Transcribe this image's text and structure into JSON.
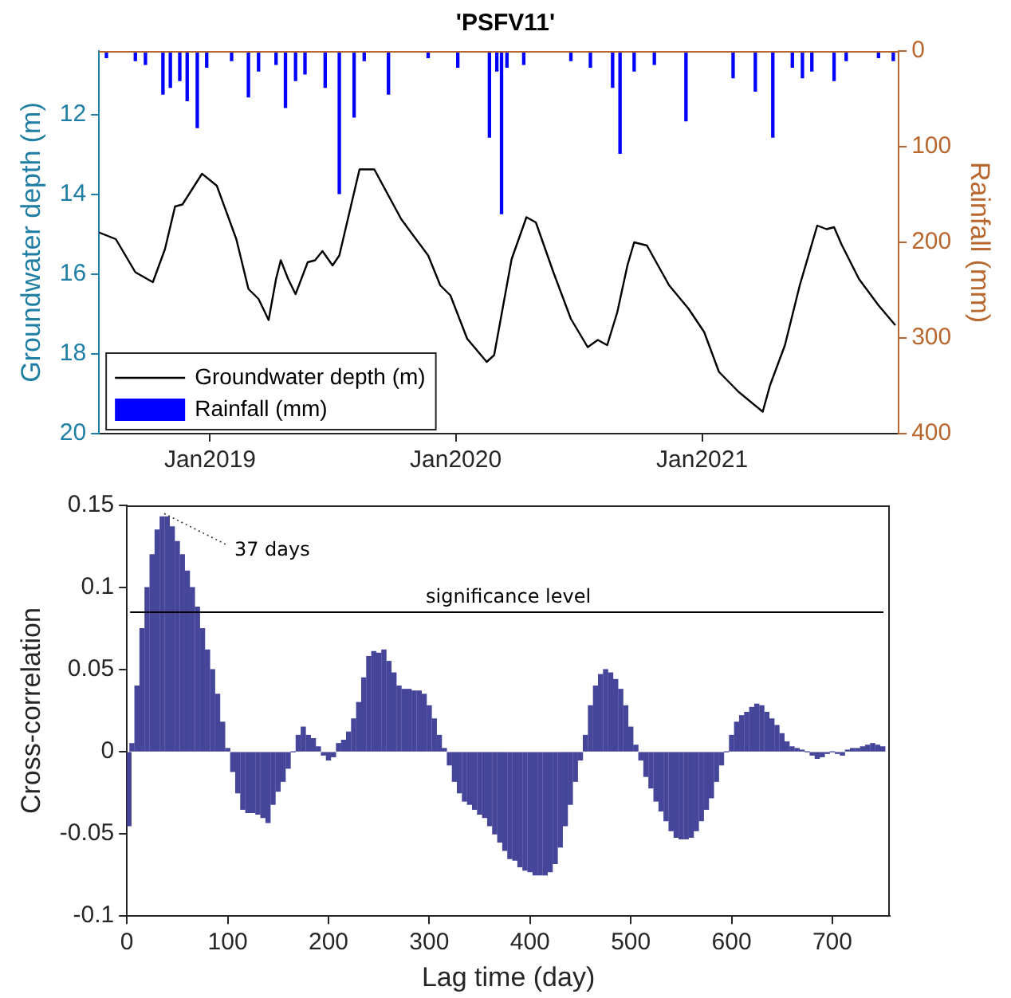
{
  "chart_data": [
    {
      "type": "line",
      "title": "'PSFV11'",
      "ylabel": "Groundwater depth (m)",
      "y2label": "Rainfall (mm)",
      "xlim": [
        "2018-07-20",
        "2021-10-20"
      ],
      "xticks": [
        {
          "value": "2019-01-01",
          "label": "Jan2019"
        },
        {
          "value": "2020-01-01",
          "label": "Jan2020"
        },
        {
          "value": "2021-01-01",
          "label": "Jan2021"
        }
      ],
      "ylim": [
        20,
        10.4
      ],
      "yticks": [
        12,
        14,
        16,
        18,
        20
      ],
      "y2lim": [
        400,
        0
      ],
      "y2ticks": [
        0,
        100,
        200,
        300,
        400
      ],
      "legend": "bottom left",
      "series": [
        {
          "name": "Groundwater depth (m)",
          "color": "#000000",
          "x": [
            "2018-07-20",
            "2018-08-14",
            "2018-09-12",
            "2018-10-08",
            "2018-10-26",
            "2018-11-10",
            "2018-11-21",
            "2018-12-20",
            "2019-01-11",
            "2019-02-09",
            "2019-02-27",
            "2019-03-14",
            "2019-03-29",
            "2019-04-09",
            "2019-04-16",
            "2019-04-27",
            "2019-05-08",
            "2019-05-26",
            "2019-06-06",
            "2019-06-17",
            "2019-07-02",
            "2019-07-12",
            "2019-07-27",
            "2019-08-11",
            "2019-09-02",
            "2019-10-12",
            "2019-11-21",
            "2019-12-09",
            "2019-12-24",
            "2020-01-18",
            "2020-02-16",
            "2020-02-27",
            "2020-03-24",
            "2020-04-15",
            "2020-04-29",
            "2020-05-25",
            "2020-06-20",
            "2020-07-15",
            "2020-07-30",
            "2020-08-13",
            "2020-08-28",
            "2020-09-12",
            "2020-09-22",
            "2020-10-11",
            "2020-11-13",
            "2020-12-12",
            "2021-01-04",
            "2021-01-26",
            "2021-02-24",
            "2021-04-01",
            "2021-04-12",
            "2021-05-04",
            "2021-05-26",
            "2021-06-21",
            "2021-07-05",
            "2021-07-16",
            "2021-07-27",
            "2021-08-22",
            "2021-09-20",
            "2021-10-15"
          ],
          "values": [
            14.95,
            15.12,
            15.95,
            16.2,
            15.37,
            14.3,
            14.25,
            13.48,
            13.78,
            15.12,
            16.37,
            16.62,
            17.15,
            16.12,
            15.65,
            16.12,
            16.5,
            15.7,
            15.65,
            15.42,
            15.78,
            15.53,
            14.45,
            13.37,
            13.37,
            14.62,
            15.53,
            16.28,
            16.53,
            17.62,
            18.2,
            18.03,
            15.62,
            14.57,
            14.7,
            15.95,
            17.12,
            17.83,
            17.65,
            17.78,
            16.95,
            15.78,
            15.2,
            15.28,
            16.28,
            16.87,
            17.45,
            18.45,
            18.95,
            19.45,
            18.78,
            17.78,
            16.28,
            14.78,
            14.87,
            14.82,
            15.25,
            16.12,
            16.78,
            17.28
          ]
        },
        {
          "name": "Rainfall (mm)",
          "type": "bar",
          "axis": "y2",
          "color": "#0000ff",
          "x": [
            "2018-07-31",
            "2018-09-12",
            "2018-09-27",
            "2018-10-23",
            "2018-11-03",
            "2018-11-17",
            "2018-11-28",
            "2018-12-13",
            "2018-12-27",
            "2019-02-02",
            "2019-02-27",
            "2019-03-14",
            "2019-04-09",
            "2019-04-23",
            "2019-05-08",
            "2019-05-22",
            "2019-06-21",
            "2019-07-12",
            "2019-08-03",
            "2019-08-18",
            "2019-09-23",
            "2019-11-21",
            "2020-01-04",
            "2020-02-20",
            "2020-03-02",
            "2020-03-09",
            "2020-03-17",
            "2020-04-11",
            "2020-06-20",
            "2020-07-19",
            "2020-08-21",
            "2020-09-01",
            "2020-09-22",
            "2020-10-22",
            "2020-12-08",
            "2021-02-16",
            "2021-03-21",
            "2021-04-16",
            "2021-05-15",
            "2021-05-30",
            "2021-06-13",
            "2021-07-16",
            "2021-08-03",
            "2021-09-20",
            "2021-10-12"
          ],
          "values": [
            7,
            10,
            14,
            45,
            38,
            31,
            52,
            80,
            17,
            10,
            48,
            21,
            14,
            59,
            31,
            24,
            38,
            149,
            69,
            10,
            45,
            7,
            17,
            90,
            21,
            170,
            17,
            14,
            10,
            17,
            38,
            107,
            21,
            14,
            73,
            28,
            42,
            90,
            17,
            28,
            21,
            31,
            10,
            7,
            10
          ]
        }
      ]
    },
    {
      "type": "bar",
      "xlabel": "Lag time (day)",
      "ylabel": "Cross-correlation",
      "color": "#45459a",
      "xlim": [
        0,
        757
      ],
      "xticks": [
        0,
        100,
        200,
        300,
        400,
        500,
        600,
        700
      ],
      "ylim": [
        -0.1,
        0.15
      ],
      "yticks": [
        -0.1,
        -0.05,
        0,
        0.05,
        0.1,
        0.15
      ],
      "ref_lines": [
        {
          "axis": "y",
          "value": 0.085,
          "label": "significance level",
          "color": "#000000"
        }
      ],
      "annotations": [
        {
          "text": "37 days",
          "x": 37,
          "y": 0.145
        }
      ],
      "x": [
        2,
        5,
        10,
        15,
        20,
        25,
        30,
        35,
        40,
        45,
        50,
        55,
        60,
        65,
        70,
        75,
        80,
        85,
        90,
        95,
        100,
        105,
        110,
        115,
        120,
        125,
        130,
        135,
        140,
        145,
        150,
        155,
        160,
        165,
        170,
        175,
        180,
        185,
        190,
        195,
        200,
        205,
        210,
        215,
        220,
        225,
        230,
        235,
        240,
        245,
        250,
        255,
        260,
        265,
        270,
        275,
        280,
        285,
        290,
        295,
        300,
        305,
        310,
        315,
        320,
        325,
        330,
        335,
        340,
        345,
        350,
        355,
        360,
        365,
        370,
        375,
        380,
        385,
        390,
        395,
        400,
        405,
        410,
        415,
        420,
        425,
        430,
        435,
        440,
        445,
        450,
        455,
        460,
        465,
        470,
        475,
        480,
        485,
        490,
        495,
        500,
        505,
        510,
        515,
        520,
        525,
        530,
        535,
        540,
        545,
        550,
        555,
        560,
        565,
        570,
        575,
        580,
        585,
        590,
        595,
        600,
        605,
        610,
        615,
        620,
        625,
        630,
        635,
        640,
        645,
        650,
        655,
        660,
        665,
        670,
        675,
        680,
        685,
        690,
        695,
        700,
        705,
        710,
        715,
        720,
        725,
        730,
        735,
        740,
        745,
        750
      ],
      "values": [
        -0.045,
        0.005,
        0.04,
        0.075,
        0.1,
        0.12,
        0.135,
        0.143,
        0.143,
        0.137,
        0.128,
        0.12,
        0.11,
        0.1,
        0.088,
        0.075,
        0.062,
        0.05,
        0.035,
        0.018,
        0.002,
        -0.012,
        -0.025,
        -0.035,
        -0.037,
        -0.037,
        -0.038,
        -0.04,
        -0.043,
        -0.032,
        -0.024,
        -0.018,
        -0.01,
        0.0,
        0.01,
        0.015,
        0.01,
        0.008,
        0.003,
        -0.002,
        -0.005,
        -0.003,
        0.005,
        0.007,
        0.012,
        0.02,
        0.03,
        0.045,
        0.058,
        0.061,
        0.06,
        0.062,
        0.055,
        0.048,
        0.04,
        0.038,
        0.038,
        0.037,
        0.037,
        0.035,
        0.028,
        0.02,
        0.01,
        0.002,
        -0.008,
        -0.018,
        -0.025,
        -0.03,
        -0.032,
        -0.035,
        -0.038,
        -0.04,
        -0.045,
        -0.05,
        -0.055,
        -0.06,
        -0.065,
        -0.066,
        -0.07,
        -0.072,
        -0.073,
        -0.075,
        -0.075,
        -0.075,
        -0.073,
        -0.068,
        -0.058,
        -0.045,
        -0.032,
        -0.018,
        -0.005,
        0.01,
        0.028,
        0.04,
        0.047,
        0.05,
        0.048,
        0.044,
        0.038,
        0.028,
        0.015,
        0.004,
        -0.005,
        -0.015,
        -0.022,
        -0.03,
        -0.036,
        -0.042,
        -0.048,
        -0.052,
        -0.053,
        -0.053,
        -0.052,
        -0.048,
        -0.042,
        -0.035,
        -0.028,
        -0.018,
        -0.008,
        0.0,
        0.01,
        0.018,
        0.022,
        0.024,
        0.027,
        0.029,
        0.028,
        0.024,
        0.02,
        0.016,
        0.011,
        0.006,
        0.003,
        0.002,
        0.001,
        0.0,
        -0.002,
        -0.004,
        -0.003,
        -0.001,
        0.0,
        -0.001,
        -0.002,
        0.001,
        0.002,
        0.002,
        0.003,
        0.004,
        0.005,
        0.004,
        0.003
      ]
    }
  ]
}
